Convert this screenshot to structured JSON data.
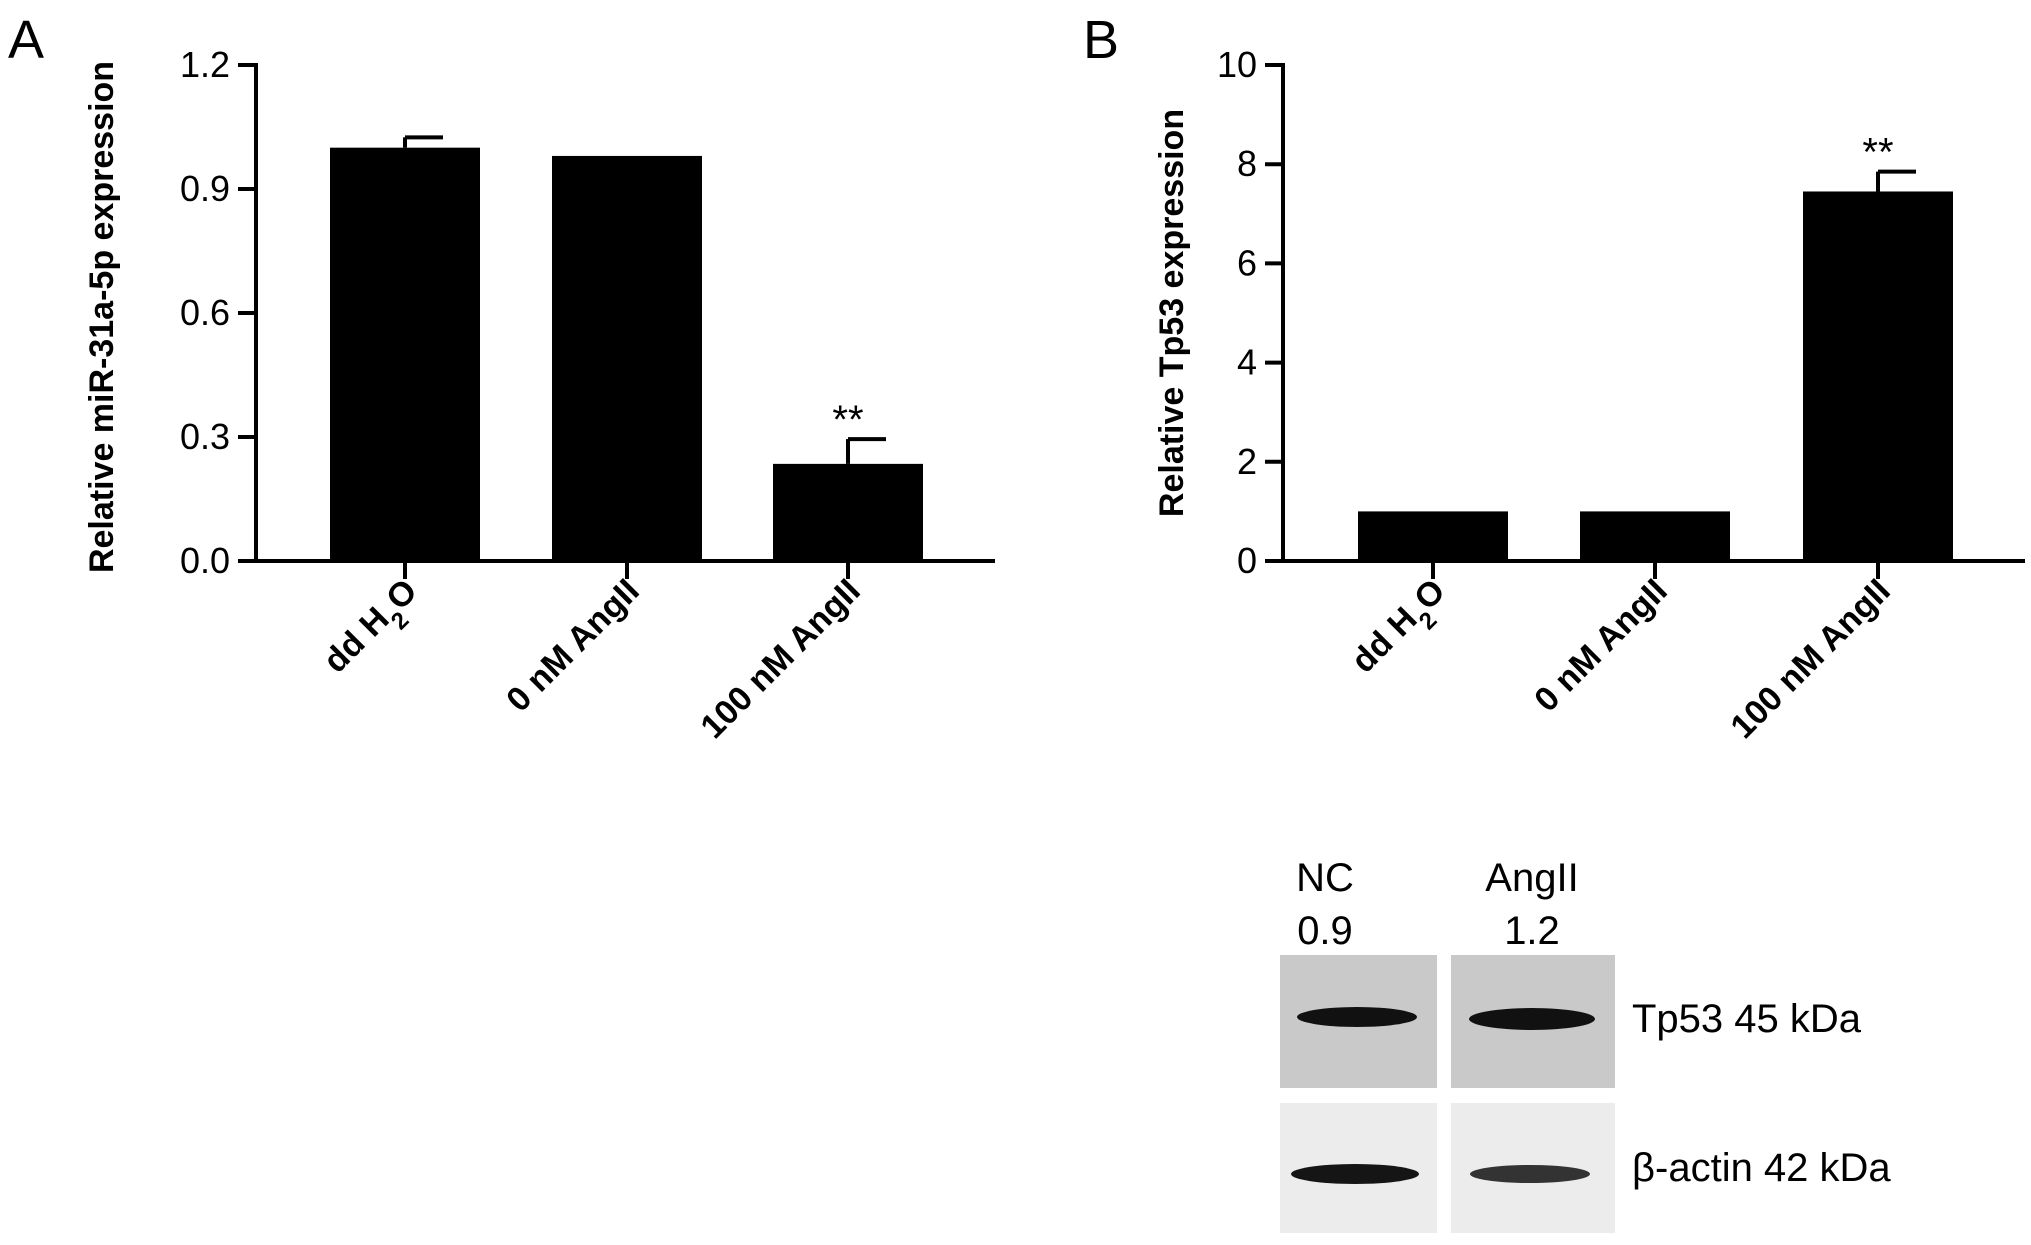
{
  "chart_data": [
    {
      "panel": "A",
      "type": "bar",
      "ylabel": "Relative miR-31a-5p expression",
      "categories": [
        "dd H2O",
        "0 nM AngII",
        "100 nM AngII"
      ],
      "values": [
        1.0,
        0.98,
        0.235
      ],
      "errors": [
        0.025,
        0.0,
        0.06
      ],
      "significance": [
        "",
        "",
        "**"
      ],
      "ylim": [
        0,
        1.2
      ],
      "yticks": [
        "0.0",
        "0.3",
        "0.6",
        "0.9",
        "1.2"
      ],
      "bar_color": "#000000"
    },
    {
      "panel": "B",
      "type": "bar",
      "ylabel": "Relative Tp53 expression",
      "categories": [
        "dd H2O",
        "0 nM AngII",
        "100 nM AngII"
      ],
      "values": [
        1.0,
        1.0,
        7.45
      ],
      "errors": [
        0.0,
        0.0,
        0.4
      ],
      "significance": [
        "",
        "",
        "**"
      ],
      "ylim": [
        0,
        10
      ],
      "yticks": [
        "0",
        "2",
        "4",
        "6",
        "8",
        "10"
      ],
      "bar_color": "#000000"
    }
  ],
  "blot": {
    "lanes": [
      {
        "name": "NC",
        "value": "0.9"
      },
      {
        "name": "AngII",
        "value": "1.2"
      }
    ],
    "bands": [
      {
        "label": "Tp53 45 kDa",
        "background": "#c9c9c9"
      },
      {
        "label": "β-actin 42 kDa",
        "background": "#ececec"
      }
    ]
  }
}
